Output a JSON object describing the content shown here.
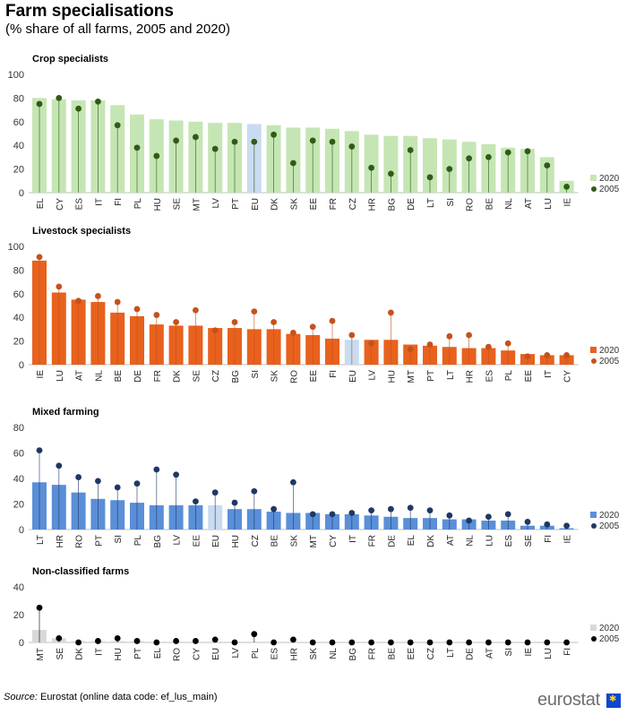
{
  "page": {
    "title": "Farm specialisations",
    "subtitle": "(% share of all farms, 2005 and 2020)",
    "source_label": "Source:",
    "source_text": " Eurostat (online data code: ef_lus_main)",
    "logo_text": "eurostat",
    "logo_icon": "eu-flag-icon"
  },
  "chart_data": [
    {
      "type": "bar",
      "title": "Crop specialists",
      "categories": [
        "EL",
        "CY",
        "ES",
        "IT",
        "FI",
        "PL",
        "HU",
        "SE",
        "MT",
        "LV",
        "PT",
        "EU",
        "DK",
        "SK",
        "EE",
        "FR",
        "CZ",
        "HR",
        "BG",
        "DE",
        "LT",
        "SI",
        "RO",
        "BE",
        "NL",
        "AT",
        "LU",
        "IE"
      ],
      "highlight": "EU",
      "ylim": [
        0,
        100
      ],
      "yticks": [
        0,
        20,
        40,
        60,
        80,
        100
      ],
      "grid": false,
      "legend_position": "bottom-right",
      "colors": {
        "bar": "#c5e6b4",
        "bar_highlight": "#c9dbf0",
        "dot": "#2f5b16"
      },
      "series": [
        {
          "name": "2020",
          "kind": "bar",
          "values": [
            80,
            79,
            78,
            78,
            74,
            66,
            62,
            61,
            60,
            59,
            59,
            58,
            57,
            55,
            55,
            54,
            52,
            49,
            48,
            48,
            46,
            45,
            43,
            41,
            38,
            37,
            30,
            10
          ]
        },
        {
          "name": "2005",
          "kind": "dot",
          "values": [
            75,
            80,
            71,
            77,
            57,
            38,
            31,
            44,
            47,
            37,
            43,
            43,
            49,
            25,
            44,
            43,
            39,
            21,
            16,
            36,
            13,
            20,
            29,
            30,
            34,
            35,
            23,
            5
          ]
        }
      ]
    },
    {
      "type": "bar",
      "title": "Livestock specialists",
      "categories": [
        "IE",
        "LU",
        "AT",
        "NL",
        "BE",
        "DE",
        "FR",
        "DK",
        "SE",
        "CZ",
        "BG",
        "SI",
        "SK",
        "RO",
        "EE",
        "FI",
        "EU",
        "LV",
        "HU",
        "MT",
        "PT",
        "LT",
        "HR",
        "ES",
        "PL",
        "EE",
        "IT",
        "CY"
      ],
      "highlight": "EU",
      "ylim": [
        0,
        100
      ],
      "yticks": [
        0,
        20,
        40,
        60,
        80,
        100
      ],
      "grid": false,
      "legend_position": "bottom-right",
      "colors": {
        "bar": "#e8611d",
        "bar_highlight": "#c9dbf0",
        "dot": "#c4521c"
      },
      "series": [
        {
          "name": "2020",
          "kind": "bar",
          "values": [
            88,
            61,
            55,
            53,
            44,
            41,
            34,
            33,
            33,
            31,
            31,
            30,
            30,
            26,
            25,
            22,
            21,
            21,
            21,
            17,
            16,
            15,
            14,
            14,
            12,
            9,
            8,
            8
          ]
        },
        {
          "name": "2005",
          "kind": "dot",
          "values": [
            91,
            66,
            54,
            58,
            53,
            47,
            42,
            36,
            46,
            29,
            36,
            45,
            36,
            27,
            32,
            37,
            25,
            18,
            44,
            13,
            17,
            24,
            25,
            15,
            18,
            7,
            8,
            8
          ]
        }
      ]
    },
    {
      "type": "bar",
      "title": "Mixed farming",
      "categories": [
        "LT",
        "HR",
        "RO",
        "PT",
        "SI",
        "PL",
        "BG",
        "LV",
        "EE",
        "EU",
        "HU",
        "CZ",
        "BE",
        "SK",
        "MT",
        "CY",
        "IT",
        "FR",
        "DE",
        "EL",
        "DK",
        "AT",
        "NL",
        "LU",
        "ES",
        "SE",
        "FI",
        "IE"
      ],
      "highlight": "EU",
      "ylim": [
        0,
        80
      ],
      "yticks": [
        0,
        20,
        40,
        60,
        80
      ],
      "grid": false,
      "legend_position": "bottom-right",
      "colors": {
        "bar": "#5a8fd8",
        "bar_highlight": "#c9dbf0",
        "dot": "#1f3864"
      },
      "series": [
        {
          "name": "2020",
          "kind": "bar",
          "values": [
            37,
            35,
            29,
            24,
            23,
            21,
            19,
            19,
            19,
            19,
            16,
            16,
            14,
            13,
            13,
            12,
            12,
            11,
            10,
            9,
            9,
            8,
            8,
            7,
            7,
            3,
            3,
            1
          ]
        },
        {
          "name": "2005",
          "kind": "dot",
          "values": [
            62,
            50,
            41,
            38,
            33,
            36,
            47,
            43,
            22,
            29,
            21,
            30,
            16,
            37,
            12,
            12,
            13,
            15,
            16,
            17,
            15,
            11,
            7,
            10,
            12,
            6,
            4,
            3
          ]
        }
      ]
    },
    {
      "type": "bar",
      "title": "Non-classified farms",
      "categories": [
        "MT",
        "SE",
        "DK",
        "IT",
        "HU",
        "PT",
        "EL",
        "RO",
        "CY",
        "EU",
        "LV",
        "PL",
        "ES",
        "HR",
        "SK",
        "NL",
        "BG",
        "FR",
        "BE",
        "EE",
        "CZ",
        "LT",
        "DE",
        "AT",
        "SI",
        "IE",
        "LU",
        "FI"
      ],
      "highlight": "EU",
      "ylim": [
        0,
        40
      ],
      "yticks": [
        0,
        20,
        40
      ],
      "grid": false,
      "legend_position": "bottom-right",
      "colors": {
        "bar": "#d9d9d9",
        "bar_highlight": "#d9d9d9",
        "dot": "#000000"
      },
      "series": [
        {
          "name": "2020",
          "kind": "bar",
          "values": [
            9,
            3,
            1,
            1,
            1,
            1,
            0,
            0,
            0,
            0,
            0,
            0,
            0,
            0,
            0,
            0,
            0,
            0,
            0,
            0,
            0,
            0,
            0,
            0,
            0,
            0,
            0,
            0
          ]
        },
        {
          "name": "2005",
          "kind": "dot",
          "values": [
            25,
            3,
            0,
            1,
            3,
            1,
            0,
            1,
            1,
            2,
            0,
            6,
            0,
            2,
            0,
            0,
            0,
            0,
            0,
            0,
            0,
            0,
            0,
            0,
            0,
            0,
            0,
            0
          ]
        }
      ]
    }
  ]
}
